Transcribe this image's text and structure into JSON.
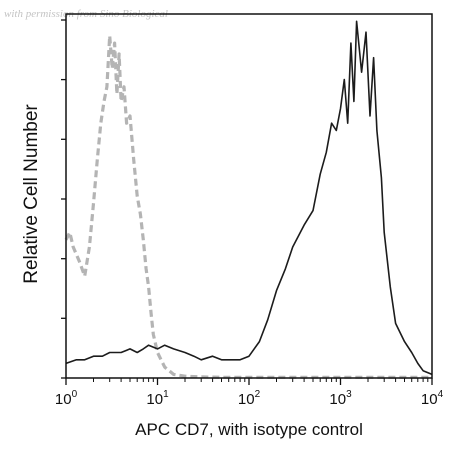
{
  "watermark": "with permission from Sino Biological",
  "chart_data": {
    "type": "line",
    "xscale": "log",
    "xlim": [
      1,
      10000
    ],
    "xticks": [
      1,
      10,
      100,
      1000,
      10000
    ],
    "xtick_labels": [
      {
        "base": "10",
        "exp": "0"
      },
      {
        "base": "10",
        "exp": "1"
      },
      {
        "base": "10",
        "exp": "2"
      },
      {
        "base": "10",
        "exp": "3"
      },
      {
        "base": "10",
        "exp": "4"
      }
    ],
    "xlabel": "APC CD7, with isotype control",
    "ylabel": "Relative Cell Number",
    "ylim": [
      0,
      100
    ],
    "grid": false,
    "series": [
      {
        "role": "isotype control",
        "color": "#b4b4b4",
        "style": "dashed",
        "x": [
          1.0,
          1.1,
          1.2,
          1.4,
          1.6,
          1.8,
          2.0,
          2.2,
          2.4,
          2.6,
          2.8,
          3.0,
          3.2,
          3.4,
          3.6,
          3.8,
          4.0,
          4.3,
          4.6,
          5.0,
          5.5,
          6.0,
          6.5,
          7.0,
          7.5,
          8.0,
          8.5,
          9.0,
          10.0,
          12,
          15,
          20,
          30,
          50,
          100,
          300,
          1000,
          3000,
          10000
        ],
        "y": [
          38,
          40,
          36,
          32,
          28,
          36,
          48,
          60,
          70,
          76,
          80,
          94,
          85,
          92,
          78,
          89,
          76,
          80,
          70,
          72,
          60,
          50,
          45,
          38,
          30,
          25,
          18,
          12,
          7,
          3,
          1,
          0.5,
          0.3,
          0.2,
          0.2,
          0.2,
          0.2,
          0.2,
          0.2
        ]
      },
      {
        "role": "APC CD7",
        "color": "#1c1c1c",
        "style": "solid",
        "x": [
          1.0,
          1.3,
          1.6,
          2.0,
          2.5,
          3.0,
          4.0,
          5.0,
          6.0,
          7.0,
          8.0,
          10,
          12,
          15,
          20,
          25,
          30,
          40,
          50,
          60,
          80,
          100,
          130,
          160,
          200,
          250,
          300,
          400,
          500,
          600,
          700,
          800,
          900,
          1000,
          1100,
          1200,
          1300,
          1400,
          1500,
          1700,
          1900,
          2100,
          2300,
          2500,
          2800,
          3000,
          3500,
          4000,
          5000,
          6000,
          7000,
          8000,
          10000
        ],
        "y": [
          4,
          5,
          5,
          6,
          6,
          7,
          7,
          8,
          7,
          8,
          9,
          8,
          9,
          8,
          7,
          6,
          5,
          6,
          5,
          5,
          5,
          6,
          10,
          16,
          24,
          30,
          36,
          42,
          46,
          56,
          62,
          70,
          68,
          74,
          82,
          70,
          92,
          76,
          98,
          84,
          95,
          72,
          88,
          68,
          55,
          40,
          25,
          15,
          10,
          7,
          4,
          2,
          1
        ]
      }
    ]
  }
}
